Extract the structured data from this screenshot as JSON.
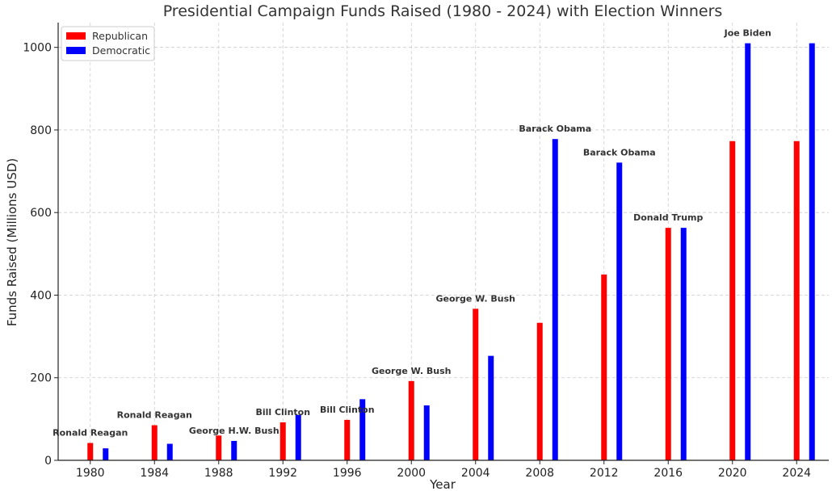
{
  "chart_data": {
    "type": "bar",
    "title": "Presidential Campaign Funds Raised (1980 - 2024) with Election Winners",
    "xlabel": "Year",
    "ylabel": "Funds Raised (Millions USD)",
    "categories": [
      "1980",
      "1984",
      "1988",
      "1992",
      "1996",
      "2000",
      "2004",
      "2008",
      "2012",
      "2016",
      "2020",
      "2024"
    ],
    "ylim": [
      0,
      1060
    ],
    "yticks": [
      0,
      200,
      400,
      600,
      800,
      1000
    ],
    "grid": true,
    "legend_position": "top-left",
    "series": [
      {
        "name": "Republican",
        "color": "#ff0000",
        "values": [
          42,
          85,
          60,
          92,
          98,
          192,
          367,
          333,
          450,
          563,
          773,
          773
        ]
      },
      {
        "name": "Democratic",
        "color": "#0000ff",
        "values": [
          29,
          40,
          47,
          110,
          148,
          133,
          253,
          778,
          721,
          563,
          1010,
          1010
        ]
      }
    ],
    "winners": [
      {
        "label": "Ronald Reagan",
        "party": "Republican",
        "category_index": 0
      },
      {
        "label": "Ronald Reagan",
        "party": "Republican",
        "category_index": 1
      },
      {
        "label": "George H.W. Bush",
        "party": "Democratic",
        "category_index": 2
      },
      {
        "label": "Bill Clinton",
        "party": "Republican",
        "category_index": 3
      },
      {
        "label": "Bill Clinton",
        "party": "Republican",
        "category_index": 4
      },
      {
        "label": "George W. Bush",
        "party": "Republican",
        "category_index": 5
      },
      {
        "label": "George W. Bush",
        "party": "Republican",
        "category_index": 6
      },
      {
        "label": "Barack Obama",
        "party": "Democratic",
        "category_index": 7
      },
      {
        "label": "Barack Obama",
        "party": "Democratic",
        "category_index": 8
      },
      {
        "label": "Donald Trump",
        "party": "Republican",
        "category_index": 9
      },
      {
        "label": "Joe Biden",
        "party": "Democratic",
        "category_index": 10
      }
    ]
  }
}
